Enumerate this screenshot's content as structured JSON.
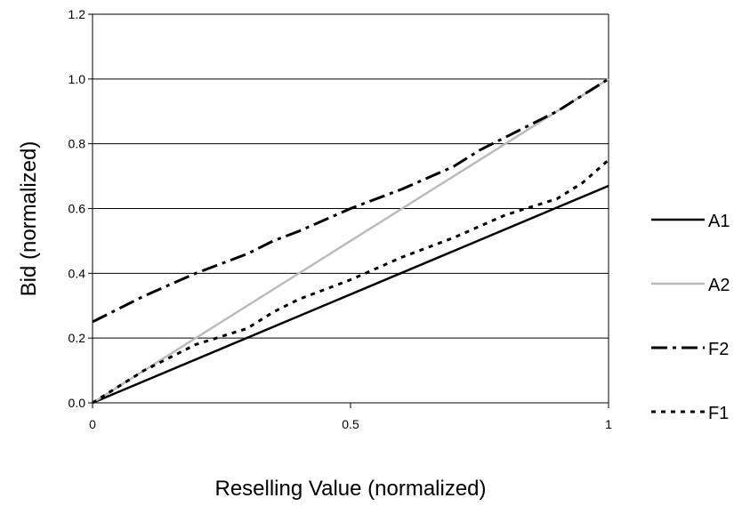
{
  "chart_data": {
    "type": "line",
    "title": "",
    "xlabel": "Reselling Value (normalized)",
    "ylabel": "Bid (normalized)",
    "xlim": [
      0,
      1
    ],
    "ylim": [
      0,
      1.2
    ],
    "x_ticks": [
      0,
      0.5,
      1
    ],
    "x_tick_labels": [
      "0",
      "0.5",
      "1"
    ],
    "y_ticks": [
      0,
      0.2,
      0.4,
      0.6,
      0.8,
      1.0,
      1.2
    ],
    "y_tick_labels": [
      "0.0",
      "0.2",
      "0.4",
      "0.6",
      "0.8",
      "1.0",
      "1.2"
    ],
    "grid": "horizontal",
    "legend_position": "right",
    "series": [
      {
        "name": "A1",
        "style": "solid",
        "color": "#000000",
        "x": [
          0,
          1
        ],
        "y": [
          0,
          0.67
        ]
      },
      {
        "name": "A2",
        "style": "solid",
        "color": "#bbbbbb",
        "x": [
          0,
          1
        ],
        "y": [
          0,
          1.0
        ]
      },
      {
        "name": "F2",
        "style": "dash-dot",
        "color": "#000000",
        "x": [
          0,
          0.1,
          0.2,
          0.3,
          0.35,
          0.4,
          0.5,
          0.6,
          0.7,
          0.75,
          0.8,
          0.9,
          1.0
        ],
        "y": [
          0.25,
          0.33,
          0.4,
          0.46,
          0.5,
          0.53,
          0.6,
          0.66,
          0.73,
          0.78,
          0.82,
          0.9,
          1.0
        ]
      },
      {
        "name": "F1",
        "style": "dotted",
        "color": "#000000",
        "x": [
          0,
          0.1,
          0.2,
          0.3,
          0.35,
          0.4,
          0.5,
          0.6,
          0.7,
          0.8,
          0.9,
          0.95,
          1.0
        ],
        "y": [
          0,
          0.1,
          0.18,
          0.23,
          0.28,
          0.32,
          0.38,
          0.45,
          0.51,
          0.58,
          0.63,
          0.68,
          0.75
        ]
      }
    ]
  }
}
